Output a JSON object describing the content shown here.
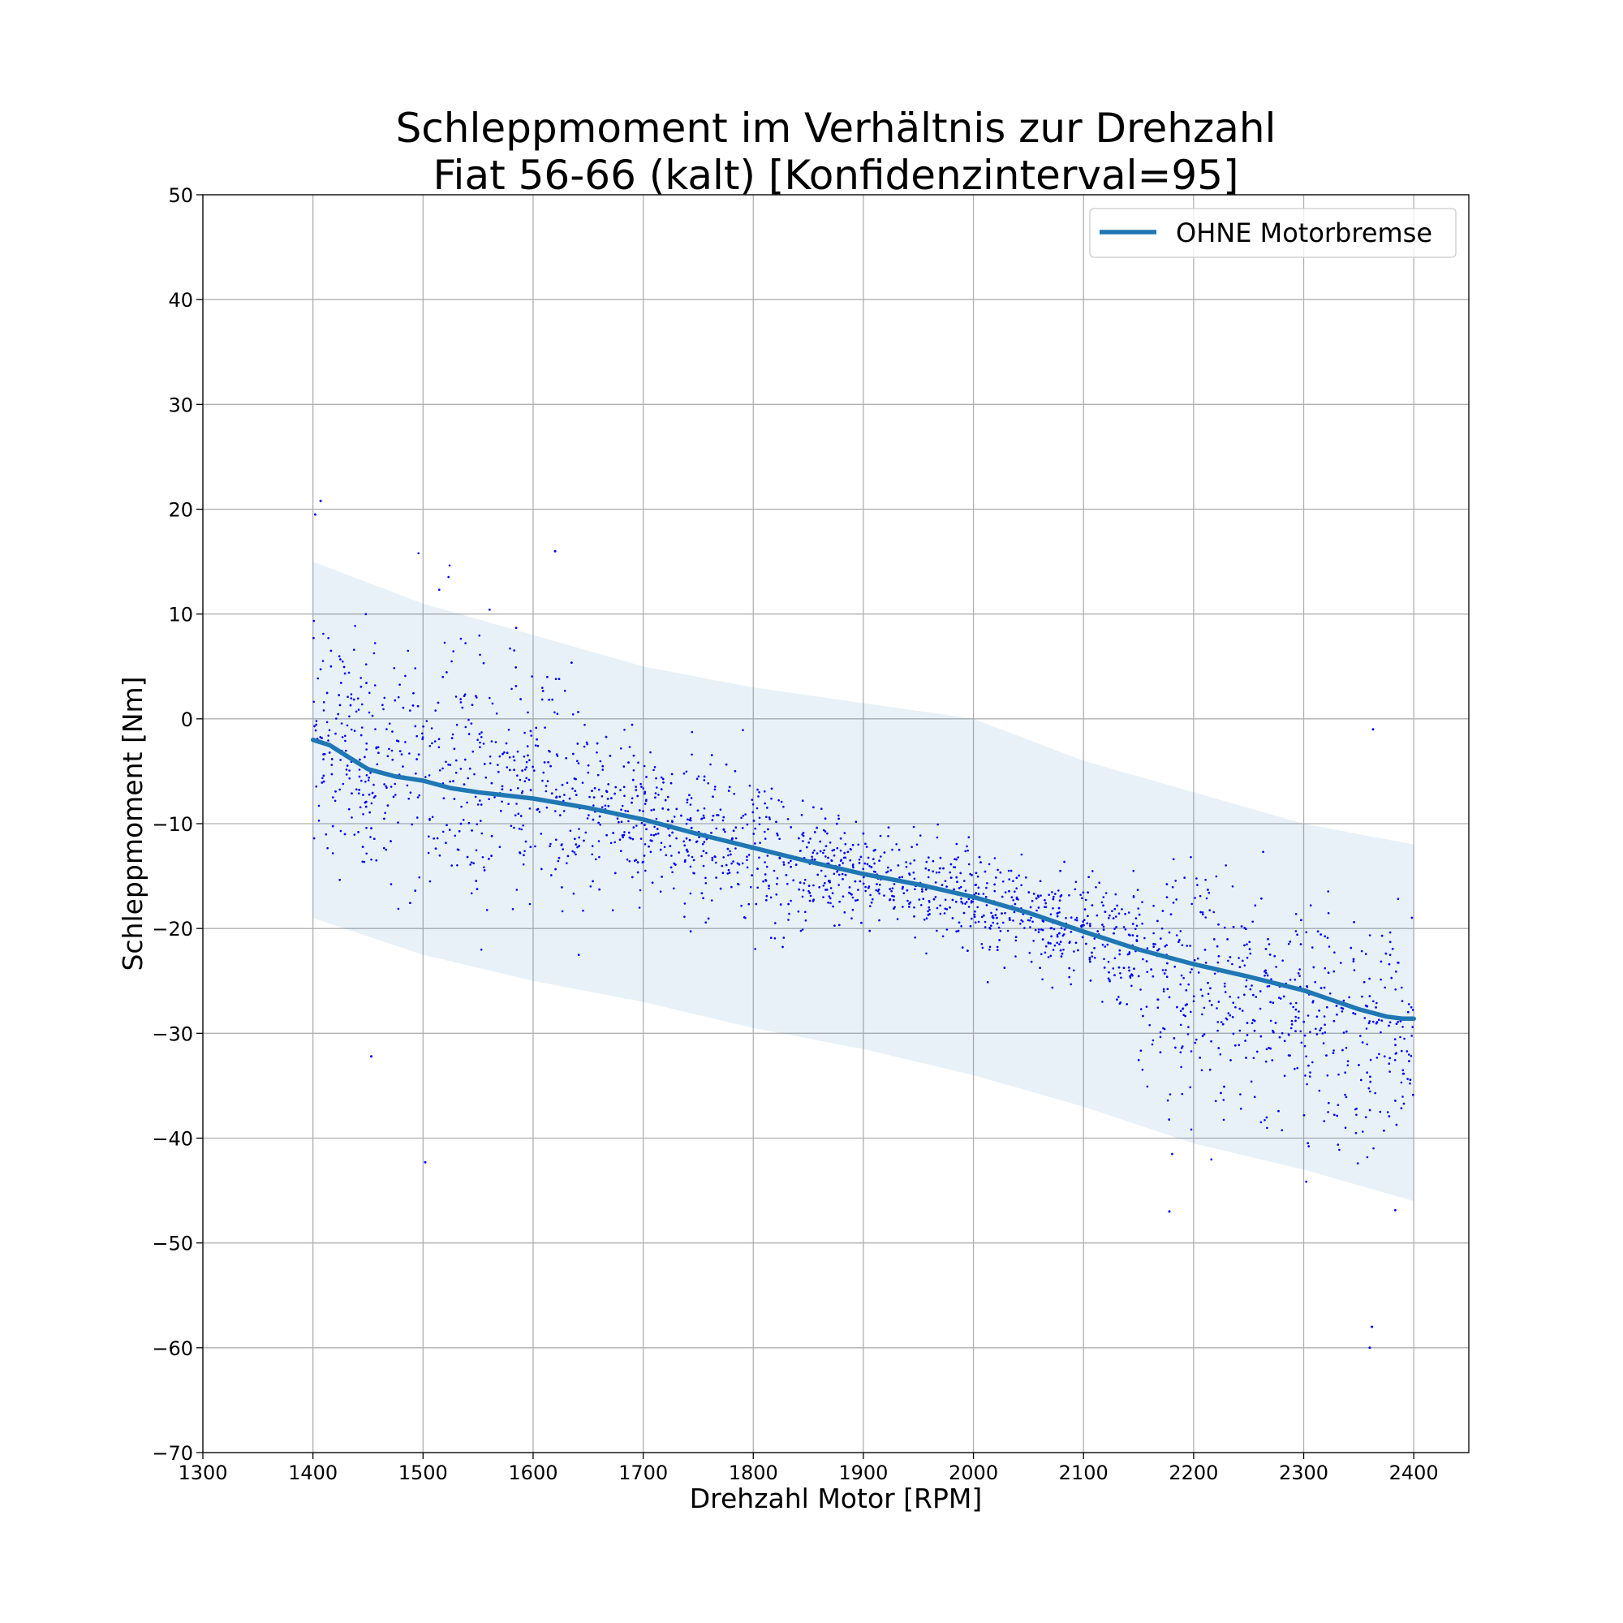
{
  "chart_data": {
    "type": "scatter",
    "title": "Schleppmoment im Verhältnis zur Drehzahl",
    "subtitle": "Fiat 56-66 (kalt) [Konfidenzinterval=95]",
    "xlabel": "Drehzahl Motor [RPM]",
    "ylabel": "Schleppmoment [Nm]",
    "xlim": [
      1300,
      2450
    ],
    "ylim": [
      -70,
      50
    ],
    "xticks": [
      1300,
      1400,
      1500,
      1600,
      1700,
      1800,
      1900,
      2000,
      2100,
      2200,
      2300,
      2400
    ],
    "yticks": [
      -70,
      -60,
      -50,
      -40,
      -30,
      -20,
      -10,
      0,
      10,
      20,
      30,
      40,
      50
    ],
    "xtick_labels": [
      "1300",
      "1400",
      "1500",
      "1600",
      "1700",
      "1800",
      "1900",
      "2000",
      "2100",
      "2200",
      "2300",
      "2400"
    ],
    "ytick_labels": [
      "−70",
      "−60",
      "−50",
      "−40",
      "−30",
      "−20",
      "−10",
      "0",
      "10",
      "20",
      "30",
      "40",
      "50"
    ],
    "grid": true,
    "legend": {
      "position": "top-right",
      "entries": [
        "OHNE Motorbremse"
      ]
    },
    "colors": {
      "points": "#0000ff",
      "trend": "#1f77b4",
      "band": "#1f77b4"
    },
    "series": [
      {
        "name": "OHNE Motorbremse",
        "kind": "line",
        "x": [
          1400,
          1415,
          1430,
          1450,
          1475,
          1500,
          1525,
          1550,
          1575,
          1600,
          1650,
          1700,
          1750,
          1800,
          1850,
          1900,
          1950,
          2000,
          2050,
          2100,
          2150,
          2200,
          2250,
          2300,
          2350,
          2375,
          2390,
          2400
        ],
        "y": [
          -2,
          -2.5,
          -3.5,
          -4.8,
          -5.5,
          -5.9,
          -6.6,
          -7.0,
          -7.3,
          -7.6,
          -8.5,
          -9.6,
          -11.0,
          -12.3,
          -13.6,
          -14.8,
          -15.8,
          -17.0,
          -18.5,
          -20.3,
          -22.0,
          -23.4,
          -24.6,
          -25.9,
          -27.7,
          -28.4,
          -28.6,
          -28.6
        ]
      }
    ],
    "confidence_band": {
      "x": [
        1400,
        1500,
        1600,
        1700,
        1800,
        1900,
        2000,
        2100,
        2200,
        2300,
        2400
      ],
      "upper": [
        15,
        11,
        8,
        5,
        3,
        1.5,
        0,
        -4,
        -7,
        -10,
        -12
      ],
      "lower": [
        -19,
        -22.5,
        -25,
        -27,
        -29.5,
        -31.5,
        -34,
        -37,
        -40.5,
        -43,
        -46
      ]
    },
    "scatter_summary": {
      "x_range": [
        1400,
        2400
      ],
      "notable_points": [
        {
          "x": 1407,
          "y": 20.8
        },
        {
          "x": 1402,
          "y": 19.5
        },
        {
          "x": 1620,
          "y": 16
        },
        {
          "x": 1502,
          "y": -42.3
        },
        {
          "x": 1453,
          "y": -32.2
        },
        {
          "x": 2360,
          "y": -60
        },
        {
          "x": 2362,
          "y": -58
        },
        {
          "x": 2178,
          "y": -47
        },
        {
          "x": 2363,
          "y": -1
        }
      ]
    }
  }
}
